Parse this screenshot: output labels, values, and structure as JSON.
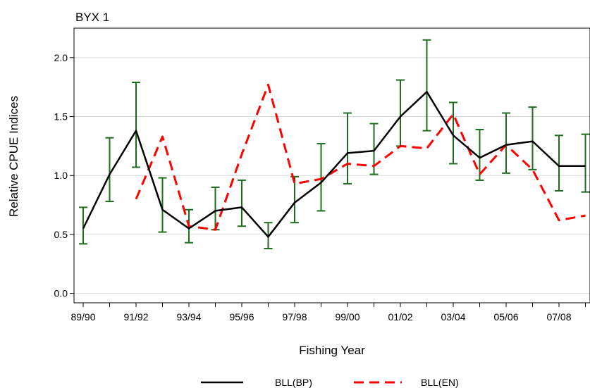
{
  "chart_data": {
    "type": "line",
    "title": "BYX 1",
    "xlabel": "Fishing Year",
    "ylabel": "Relative CPUE Indices",
    "x_tick_labels": [
      "89/90",
      "91/92",
      "93/94",
      "95/96",
      "97/98",
      "99/00",
      "01/02",
      "03/04",
      "05/06",
      "07/08"
    ],
    "y_tick_labels": [
      "0.0",
      "0.5",
      "1.0",
      "1.5",
      "2.0"
    ],
    "ylim": [
      -0.08,
      2.25
    ],
    "grid": "horizontal",
    "legend_position": "bottom",
    "x": [
      "89/90",
      "90/91",
      "91/92",
      "92/93",
      "93/94",
      "94/95",
      "95/96",
      "96/97",
      "97/98",
      "98/99",
      "99/00",
      "00/01",
      "01/02",
      "02/03",
      "03/04",
      "04/05",
      "05/06",
      "06/07",
      "07/08",
      "08/09"
    ],
    "series": [
      {
        "name": "BLL(BP)",
        "color": "#000000",
        "style": "solid",
        "values": [
          0.55,
          1.01,
          1.38,
          0.71,
          0.55,
          0.7,
          0.73,
          0.48,
          0.77,
          0.94,
          1.19,
          1.21,
          1.5,
          1.71,
          1.34,
          1.15,
          1.26,
          1.29,
          1.08,
          1.08
        ],
        "ci_lower": [
          0.42,
          0.78,
          1.07,
          0.52,
          0.43,
          0.54,
          0.57,
          0.38,
          0.6,
          0.7,
          0.93,
          1.01,
          1.25,
          1.38,
          1.1,
          0.96,
          1.02,
          1.05,
          0.87,
          0.86
        ],
        "ci_upper": [
          0.73,
          1.32,
          1.79,
          0.98,
          0.71,
          0.9,
          0.96,
          0.6,
          0.99,
          1.27,
          1.53,
          1.44,
          1.81,
          2.15,
          1.62,
          1.39,
          1.53,
          1.58,
          1.34,
          1.35
        ]
      },
      {
        "name": "BLL(EN)",
        "color": "#ff0000",
        "style": "dashed",
        "values": [
          null,
          null,
          0.8,
          1.33,
          0.57,
          0.54,
          1.18,
          1.77,
          0.93,
          0.97,
          1.1,
          1.08,
          1.25,
          1.23,
          1.52,
          1.01,
          1.26,
          1.05,
          0.62,
          0.66
        ]
      }
    ],
    "errorbar_color": "#1f6e1f"
  }
}
